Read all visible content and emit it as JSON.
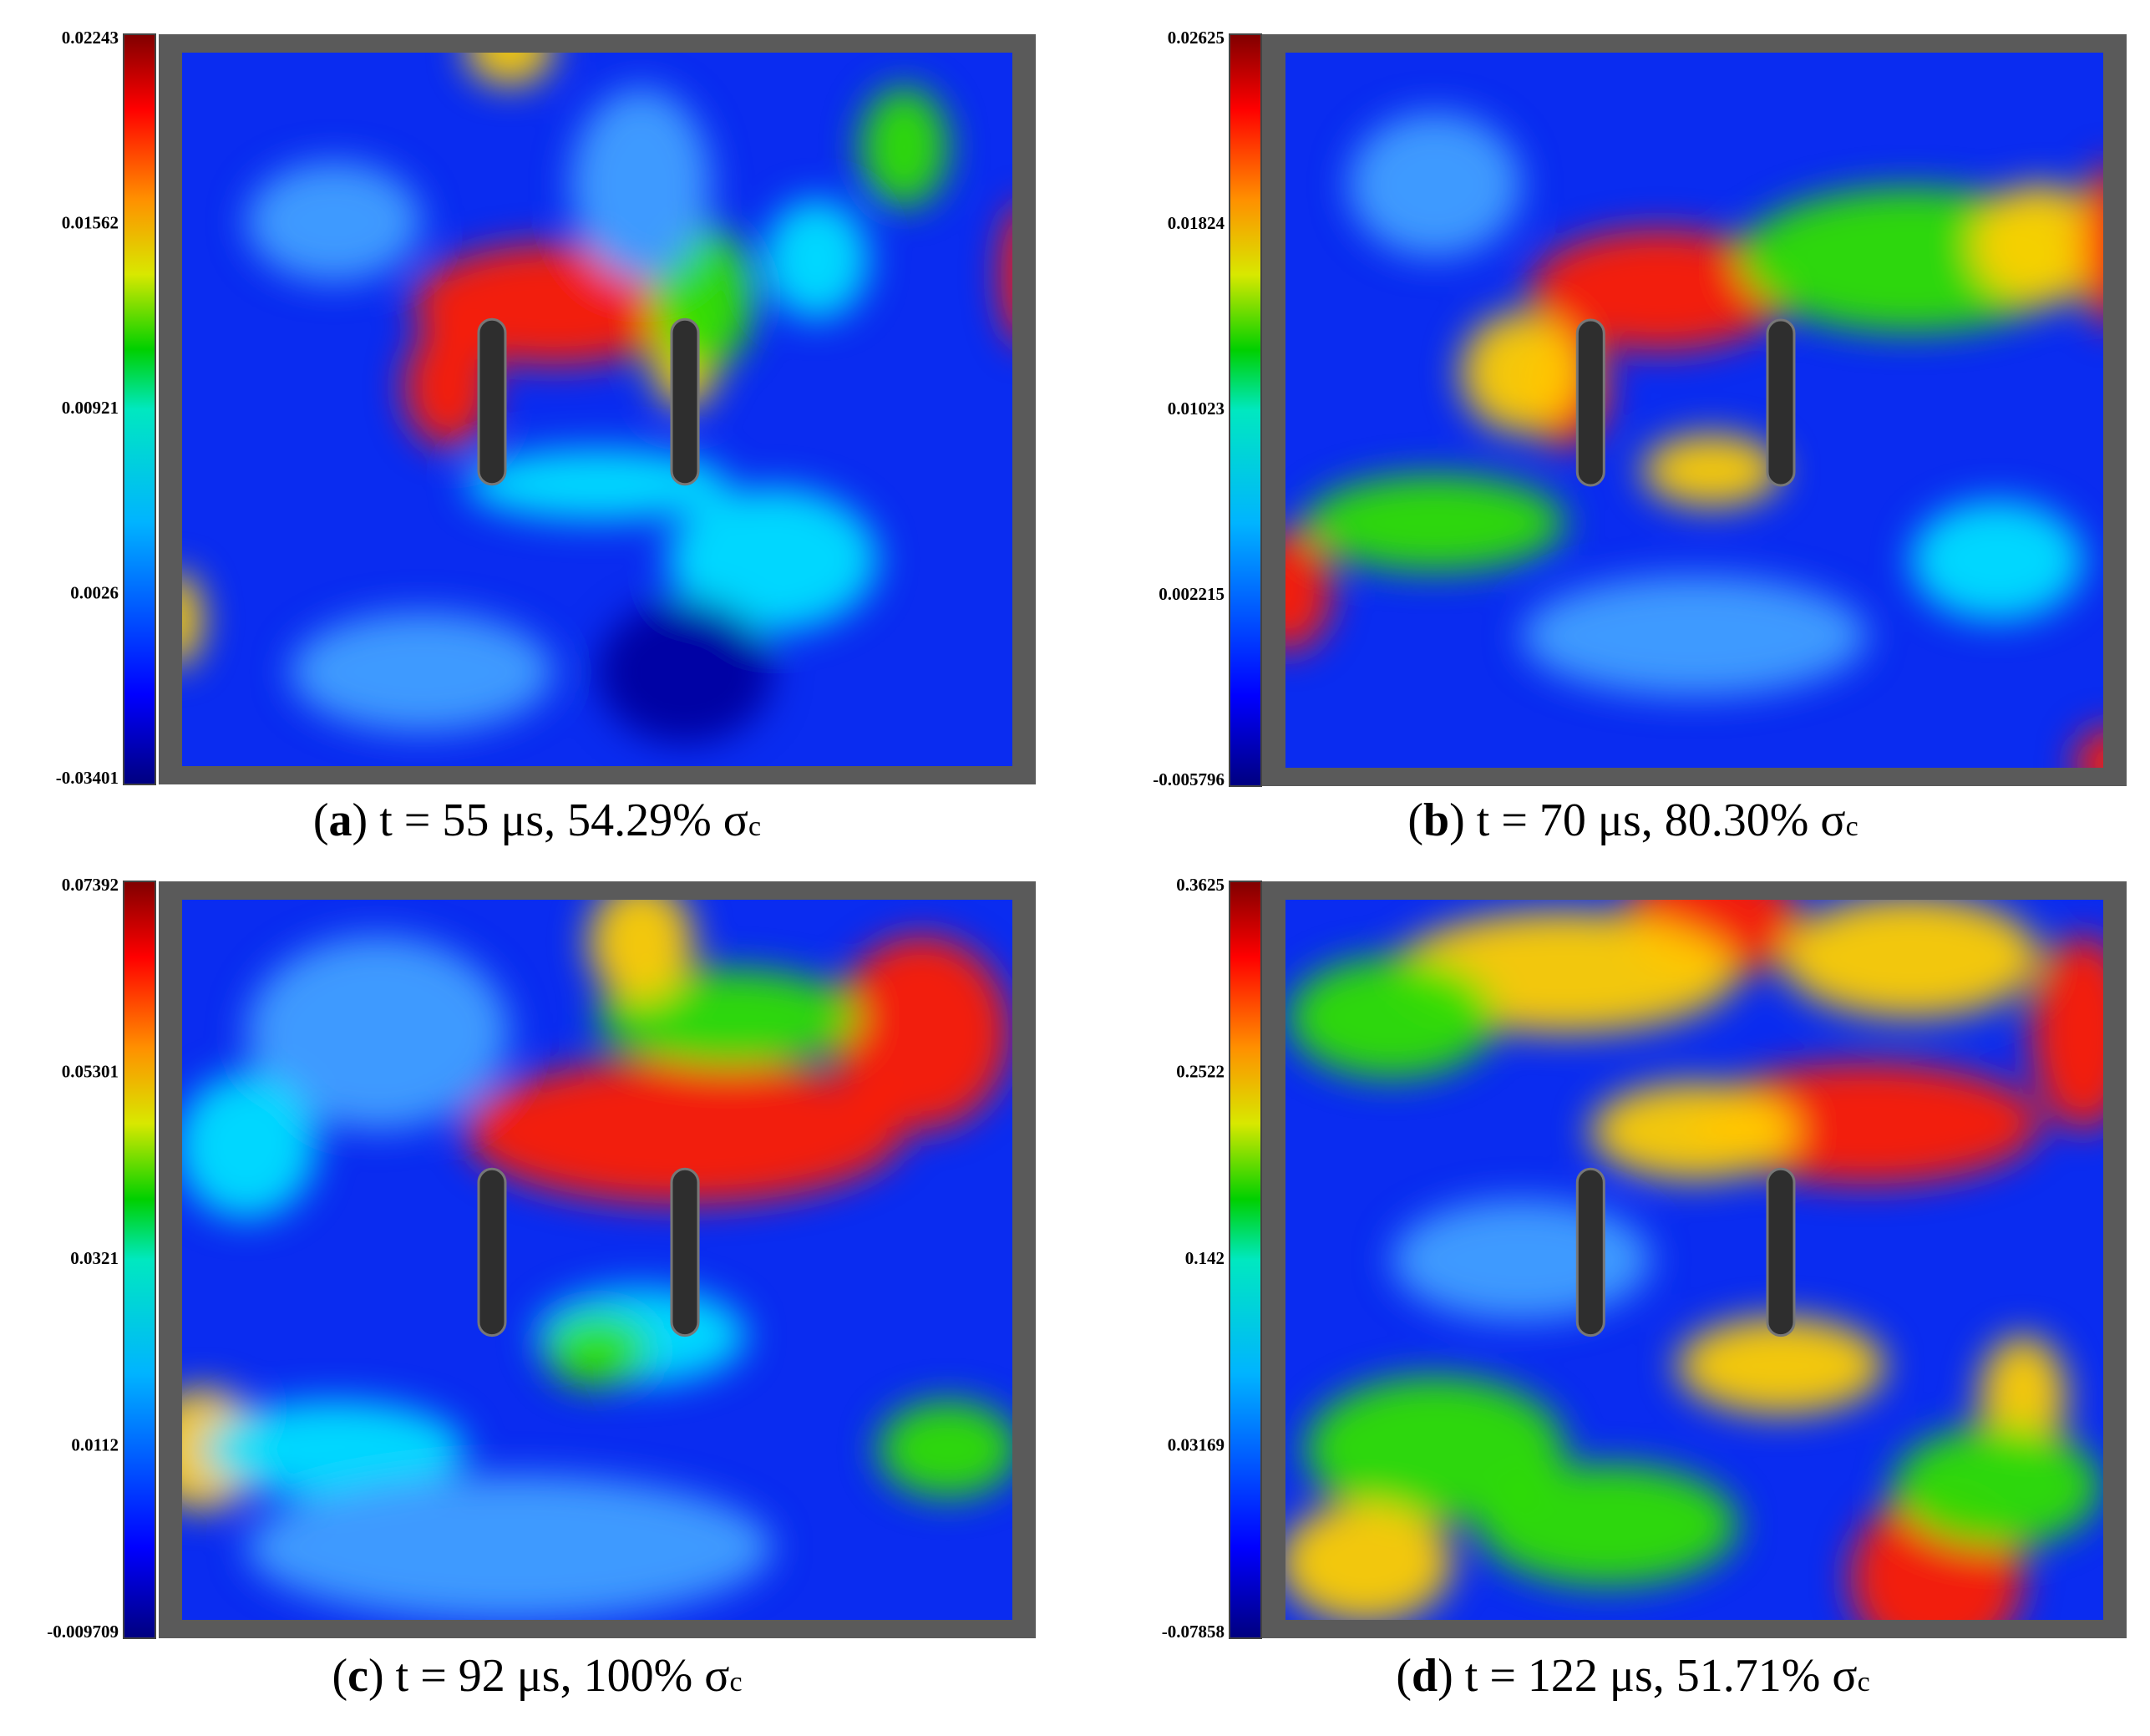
{
  "panels": [
    {
      "colorbar_ticks": [
        "0.02243",
        "0.01562",
        "0.00921",
        "0.0026",
        "-0.03401"
      ],
      "caption": {
        "open": "(",
        "label": "a",
        "text": ") t = 55 μs, 54.29% σ",
        "sub": "c"
      }
    },
    {
      "colorbar_ticks": [
        "0.02625",
        "0.01824",
        "0.01023",
        "0.002215",
        "-0.005796"
      ],
      "caption": {
        "open": "(",
        "label": "b",
        "text": ") t = 70 μs, 80.30% σ",
        "sub": "c"
      }
    },
    {
      "colorbar_ticks": [
        "0.07392",
        "0.05301",
        "0.0321",
        "0.0112",
        "-0.009709"
      ],
      "caption": {
        "open": "(",
        "label": "c",
        "text": ") t = 92 μs, 100% σ",
        "sub": "c"
      }
    },
    {
      "colorbar_ticks": [
        "0.3625",
        "0.2522",
        "0.142",
        "0.03169",
        "-0.07858"
      ],
      "caption": {
        "open": "(",
        "label": "d",
        "text": ") t = 122 μs, 51.71% σ",
        "sub": "c"
      }
    }
  ]
}
